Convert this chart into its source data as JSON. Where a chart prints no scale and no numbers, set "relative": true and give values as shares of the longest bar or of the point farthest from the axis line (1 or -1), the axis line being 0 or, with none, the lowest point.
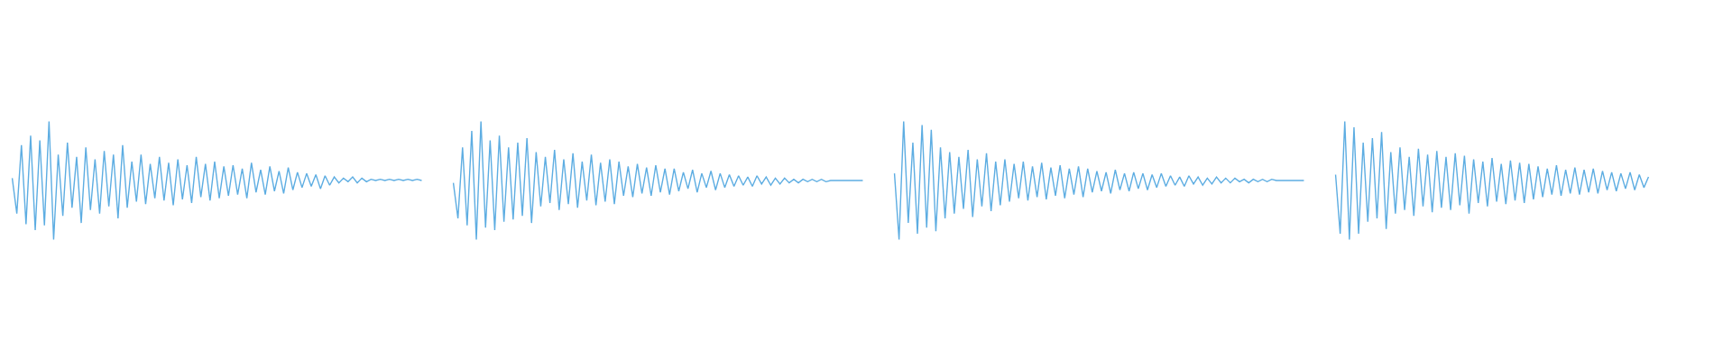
{
  "chart_data": [
    {
      "type": "line",
      "relative": true,
      "categories": [
        null,
        null,
        null,
        null,
        null,
        null,
        null,
        null,
        null,
        null,
        null,
        null,
        null,
        null,
        null,
        null,
        null,
        null,
        null,
        null,
        null,
        null,
        null,
        null,
        null,
        null,
        null,
        null,
        null,
        null,
        null,
        null,
        null,
        null,
        null,
        null,
        null,
        null,
        null,
        null,
        null,
        null,
        null,
        null,
        null,
        null,
        null,
        null,
        null,
        null,
        null,
        null,
        null,
        null,
        null,
        null,
        null,
        null,
        null,
        null,
        null,
        null,
        null,
        null,
        null,
        null,
        null,
        null,
        null,
        null,
        null,
        null,
        null,
        null,
        null,
        null,
        null,
        null,
        null,
        null,
        null,
        null,
        null,
        null,
        null,
        null,
        null,
        null,
        null,
        null
      ],
      "series": [
        {
          "color": "#5dade2",
          "values": [
            0.52,
            0.22,
            0.8,
            0.13,
            0.88,
            0.08,
            0.84,
            0.12,
            1.0,
            0.0,
            0.72,
            0.2,
            0.82,
            0.27,
            0.7,
            0.14,
            0.78,
            0.25,
            0.68,
            0.22,
            0.75,
            0.28,
            0.72,
            0.18,
            0.8,
            0.27,
            0.66,
            0.32,
            0.72,
            0.3,
            0.64,
            0.35,
            0.7,
            0.33,
            0.65,
            0.29,
            0.68,
            0.34,
            0.63,
            0.31,
            0.7,
            0.36,
            0.64,
            0.33,
            0.66,
            0.35,
            0.62,
            0.37,
            0.63,
            0.38,
            0.6,
            0.35,
            0.65,
            0.4,
            0.59,
            0.38,
            0.62,
            0.41,
            0.58,
            0.39,
            0.61,
            0.42,
            0.57,
            0.44,
            0.56,
            0.45,
            0.55,
            0.43,
            0.54,
            0.46,
            0.53,
            0.48,
            0.52,
            0.49,
            0.53,
            0.48,
            0.52,
            0.49,
            0.51,
            0.5,
            0.51,
            0.5,
            0.51,
            0.5,
            0.51,
            0.5,
            0.51,
            0.5,
            0.51,
            0.5
          ]
        }
      ]
    },
    {
      "type": "line",
      "relative": true,
      "categories": [
        null,
        null,
        null,
        null,
        null,
        null,
        null,
        null,
        null,
        null,
        null,
        null,
        null,
        null,
        null,
        null,
        null,
        null,
        null,
        null,
        null,
        null,
        null,
        null,
        null,
        null,
        null,
        null,
        null,
        null,
        null,
        null,
        null,
        null,
        null,
        null,
        null,
        null,
        null,
        null,
        null,
        null,
        null,
        null,
        null,
        null,
        null,
        null,
        null,
        null,
        null,
        null,
        null,
        null,
        null,
        null,
        null,
        null,
        null,
        null,
        null,
        null,
        null,
        null,
        null,
        null,
        null,
        null,
        null,
        null,
        null,
        null,
        null,
        null,
        null,
        null,
        null,
        null,
        null,
        null,
        null,
        null,
        null,
        null,
        null,
        null,
        null,
        null,
        null,
        null
      ],
      "series": [
        {
          "color": "#5dade2",
          "values": [
            0.48,
            0.18,
            0.78,
            0.12,
            0.92,
            0.0,
            1.0,
            0.1,
            0.84,
            0.08,
            0.88,
            0.15,
            0.78,
            0.17,
            0.82,
            0.2,
            0.86,
            0.14,
            0.74,
            0.28,
            0.7,
            0.31,
            0.76,
            0.25,
            0.68,
            0.3,
            0.73,
            0.27,
            0.66,
            0.33,
            0.72,
            0.29,
            0.65,
            0.32,
            0.68,
            0.3,
            0.66,
            0.37,
            0.62,
            0.36,
            0.64,
            0.39,
            0.61,
            0.37,
            0.63,
            0.4,
            0.6,
            0.38,
            0.6,
            0.41,
            0.57,
            0.43,
            0.59,
            0.4,
            0.56,
            0.44,
            0.58,
            0.42,
            0.56,
            0.44,
            0.55,
            0.45,
            0.54,
            0.46,
            0.53,
            0.45,
            0.54,
            0.47,
            0.53,
            0.46,
            0.52,
            0.47,
            0.52,
            0.48,
            0.51,
            0.48,
            0.51,
            0.49,
            0.51,
            0.49,
            0.51,
            0.49,
            0.5,
            0.5,
            0.5,
            0.5,
            0.5,
            0.5,
            0.5,
            0.5
          ]
        }
      ]
    },
    {
      "type": "line",
      "relative": true,
      "categories": [
        null,
        null,
        null,
        null,
        null,
        null,
        null,
        null,
        null,
        null,
        null,
        null,
        null,
        null,
        null,
        null,
        null,
        null,
        null,
        null,
        null,
        null,
        null,
        null,
        null,
        null,
        null,
        null,
        null,
        null,
        null,
        null,
        null,
        null,
        null,
        null,
        null,
        null,
        null,
        null,
        null,
        null,
        null,
        null,
        null,
        null,
        null,
        null,
        null,
        null,
        null,
        null,
        null,
        null,
        null,
        null,
        null,
        null,
        null,
        null,
        null,
        null,
        null,
        null,
        null,
        null,
        null,
        null,
        null,
        null,
        null,
        null,
        null,
        null,
        null,
        null,
        null,
        null,
        null,
        null,
        null,
        null,
        null,
        null,
        null,
        null,
        null,
        null,
        null,
        null
      ],
      "series": [
        {
          "color": "#5dade2",
          "values": [
            0.56,
            0.0,
            1.0,
            0.14,
            0.82,
            0.05,
            0.97,
            0.1,
            0.93,
            0.07,
            0.78,
            0.18,
            0.74,
            0.22,
            0.7,
            0.26,
            0.76,
            0.19,
            0.68,
            0.28,
            0.73,
            0.24,
            0.66,
            0.29,
            0.68,
            0.32,
            0.64,
            0.35,
            0.66,
            0.33,
            0.62,
            0.36,
            0.65,
            0.34,
            0.61,
            0.37,
            0.63,
            0.35,
            0.6,
            0.38,
            0.62,
            0.36,
            0.6,
            0.4,
            0.58,
            0.41,
            0.57,
            0.39,
            0.59,
            0.42,
            0.56,
            0.41,
            0.57,
            0.43,
            0.56,
            0.42,
            0.55,
            0.44,
            0.56,
            0.45,
            0.54,
            0.46,
            0.53,
            0.45,
            0.54,
            0.47,
            0.53,
            0.46,
            0.52,
            0.47,
            0.53,
            0.48,
            0.52,
            0.48,
            0.52,
            0.49,
            0.51,
            0.48,
            0.51,
            0.49,
            0.51,
            0.49,
            0.51,
            0.5,
            0.5,
            0.5,
            0.5,
            0.5,
            0.5,
            0.5
          ]
        }
      ]
    },
    {
      "type": "line",
      "relative": true,
      "categories": [
        null,
        null,
        null,
        null,
        null,
        null,
        null,
        null,
        null,
        null,
        null,
        null,
        null,
        null,
        null,
        null,
        null,
        null,
        null,
        null,
        null,
        null,
        null,
        null,
        null,
        null,
        null,
        null,
        null,
        null,
        null,
        null,
        null,
        null,
        null,
        null,
        null,
        null,
        null,
        null,
        null,
        null,
        null,
        null,
        null,
        null,
        null,
        null,
        null,
        null,
        null,
        null,
        null,
        null,
        null,
        null,
        null,
        null,
        null,
        null,
        null,
        null,
        null,
        null,
        null,
        null,
        null,
        null,
        null
      ],
      "series": [
        {
          "color": "#5dade2",
          "values": [
            0.55,
            0.05,
            1.0,
            0.0,
            0.95,
            0.05,
            0.82,
            0.15,
            0.86,
            0.18,
            0.91,
            0.09,
            0.74,
            0.22,
            0.78,
            0.25,
            0.7,
            0.2,
            0.77,
            0.28,
            0.72,
            0.23,
            0.75,
            0.27,
            0.7,
            0.25,
            0.73,
            0.29,
            0.71,
            0.22,
            0.68,
            0.31,
            0.66,
            0.28,
            0.69,
            0.32,
            0.64,
            0.3,
            0.67,
            0.33,
            0.65,
            0.31,
            0.64,
            0.34,
            0.62,
            0.36,
            0.6,
            0.38,
            0.63,
            0.37,
            0.59,
            0.39,
            0.61,
            0.38,
            0.59,
            0.4,
            0.6,
            0.39,
            0.58,
            0.42,
            0.57,
            0.41,
            0.56,
            0.43,
            0.57,
            0.42,
            0.55,
            0.44,
            0.53
          ]
        }
      ]
    }
  ]
}
